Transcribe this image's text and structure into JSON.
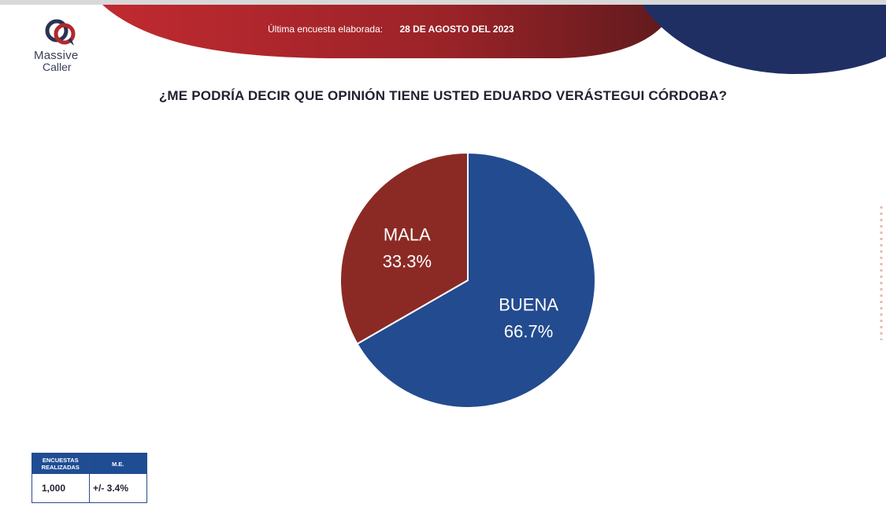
{
  "header": {
    "label": "Última encuesta elaborada:",
    "date": "28 DE AGOSTO DEL 2023"
  },
  "logo": {
    "line1": "Massive",
    "line2": "Caller"
  },
  "question": "¿ME PODRÍA DECIR QUE OPINIÓN TIENE USTED EDUARDO VERÁSTEGUI CÓRDOBA?",
  "colors": {
    "red": "#8b2a24",
    "blue": "#234b8f",
    "banner_red": "#b2282e",
    "banner_navy": "#1f2f63"
  },
  "chart_data": {
    "type": "pie",
    "title": "",
    "slices": [
      {
        "name": "BUENA",
        "value": 66.7,
        "label": "66.7%",
        "color": "#234b8f"
      },
      {
        "name": "MALA",
        "value": 33.3,
        "label": "33.3%",
        "color": "#8b2a24"
      }
    ]
  },
  "stats": {
    "col1_header": "ENCUESTAS REALIZADAS",
    "col2_header": "M.E.",
    "col1_value": "1,000",
    "col2_value": "+/- 3.4%"
  }
}
